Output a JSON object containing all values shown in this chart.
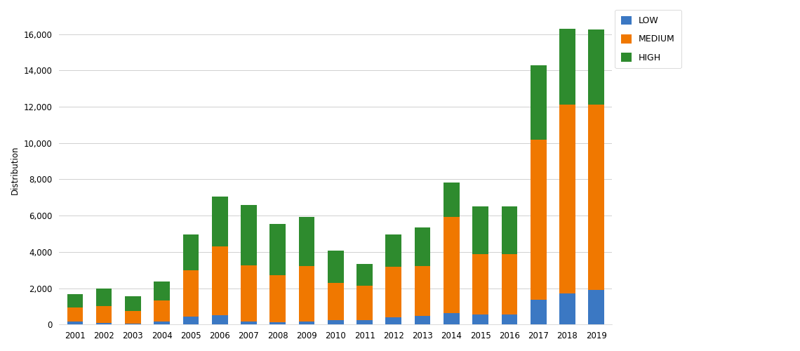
{
  "years": [
    "2001",
    "2002",
    "2003",
    "2004",
    "2005",
    "2006",
    "2007",
    "2008",
    "2009",
    "2010",
    "2011",
    "2012",
    "2013",
    "2014",
    "2015",
    "2016",
    "2017",
    "2018",
    "2019"
  ],
  "low": [
    170,
    80,
    50,
    180,
    430,
    500,
    175,
    130,
    160,
    260,
    230,
    380,
    480,
    630,
    570,
    570,
    1350,
    1700,
    1900
  ],
  "medium": [
    750,
    950,
    700,
    1150,
    2550,
    3800,
    3100,
    2600,
    3050,
    2050,
    1900,
    2800,
    2750,
    5300,
    3300,
    3300,
    8850,
    10400,
    10200
  ],
  "high": [
    750,
    950,
    800,
    1050,
    2000,
    2750,
    3300,
    2800,
    2700,
    1750,
    1200,
    1800,
    2100,
    1900,
    2650,
    2650,
    4100,
    4200,
    4150
  ],
  "low_color": "#3b78c3",
  "medium_color": "#f07800",
  "high_color": "#2e8b2e",
  "background_color": "#ffffff",
  "ylabel": "Distribution",
  "ylim": [
    0,
    17000
  ],
  "yticks": [
    0,
    2000,
    4000,
    6000,
    8000,
    10000,
    12000,
    14000,
    16000
  ],
  "legend_labels": [
    "LOW",
    "MEDIUM",
    "HIGH"
  ],
  "bar_width": 0.55,
  "grid_color": "#d0d0d0"
}
